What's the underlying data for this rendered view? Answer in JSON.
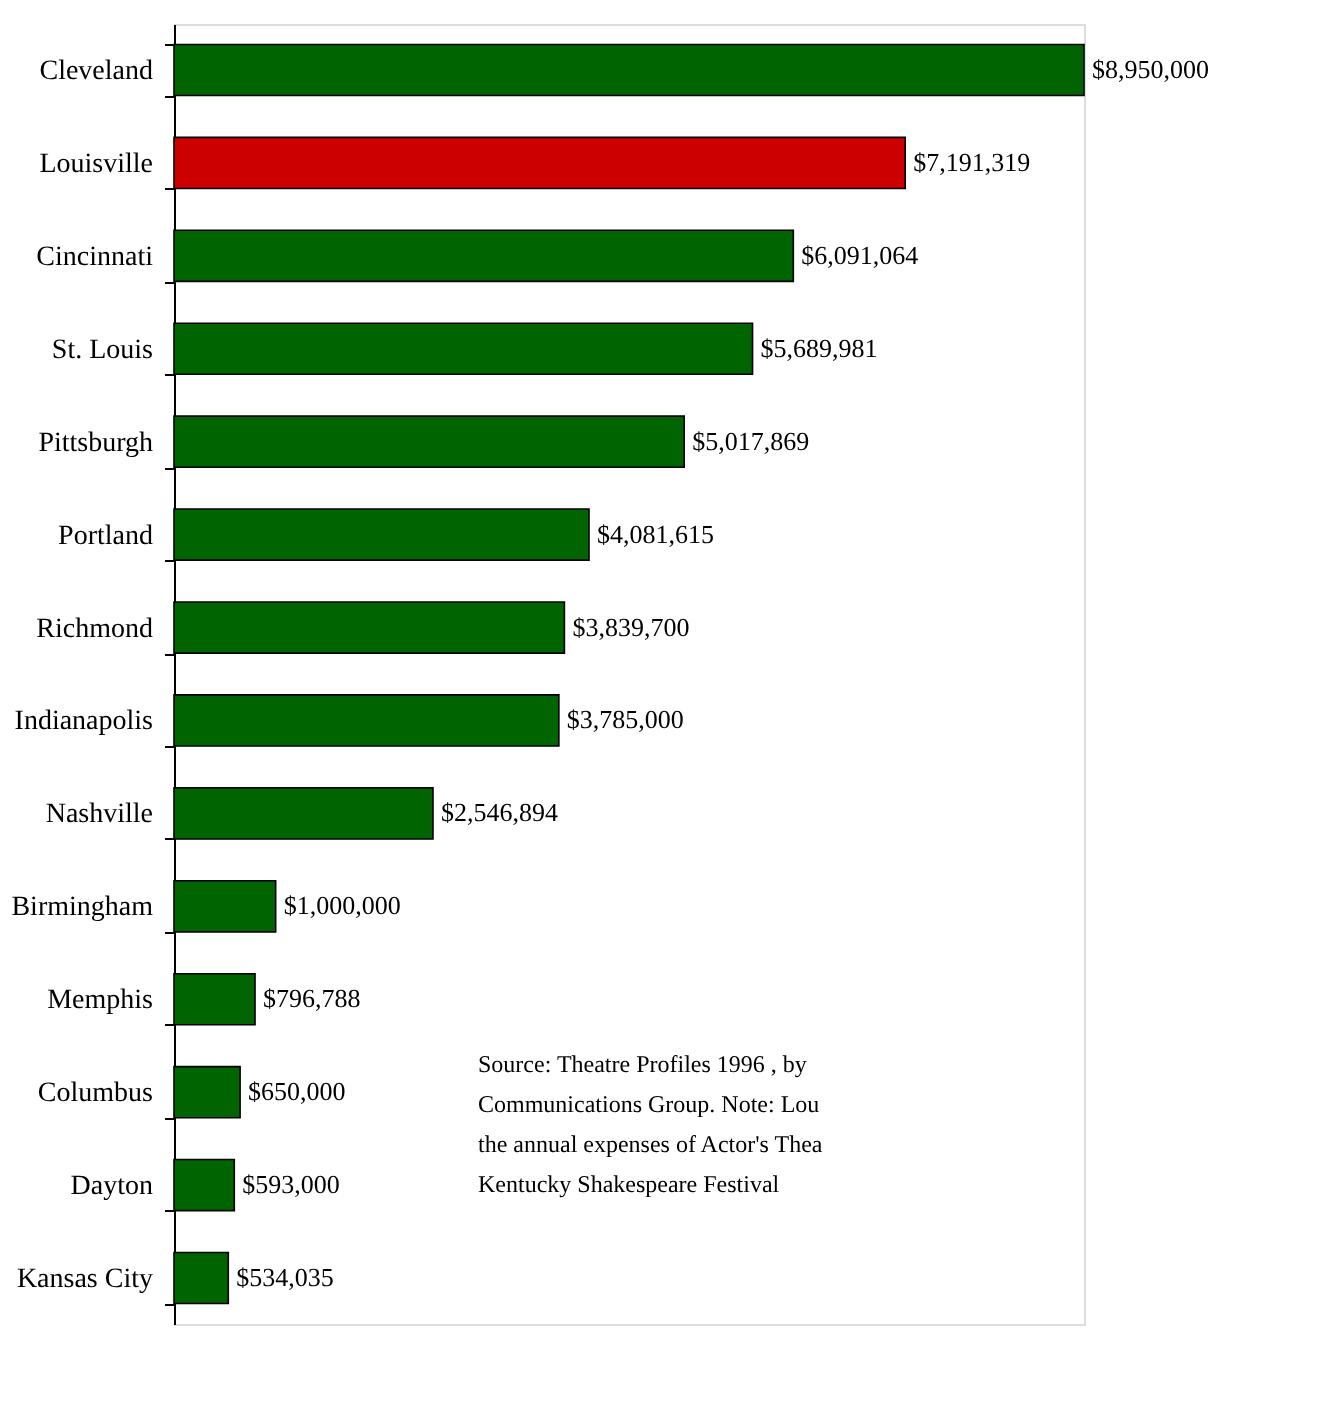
{
  "chart_data": {
    "type": "bar",
    "orientation": "horizontal",
    "categories": [
      "Cleveland",
      "Louisville",
      "Cincinnati",
      "St. Louis",
      "Pittsburgh",
      "Portland",
      "Richmond",
      "Indianapolis",
      "Nashville",
      "Birmingham",
      "Memphis",
      "Columbus",
      "Dayton",
      "Kansas City"
    ],
    "values": [
      8950000,
      7191319,
      6091064,
      5689981,
      5017869,
      4081615,
      3839700,
      3785000,
      2546894,
      1000000,
      796788,
      650000,
      593000,
      534035
    ],
    "value_labels": [
      "$8,950,000",
      "$7,191,319",
      "$6,091,064",
      "$5,689,981",
      "$5,017,869",
      "$4,081,615",
      "$3,839,700",
      "$3,785,000",
      "$2,546,894",
      "$1,000,000",
      "$796,788",
      "$650,000",
      "$593,000",
      "$534,035"
    ],
    "colors": [
      "#006400",
      "#cc0000",
      "#006400",
      "#006400",
      "#006400",
      "#006400",
      "#006400",
      "#006400",
      "#006400",
      "#006400",
      "#006400",
      "#006400",
      "#006400",
      "#006400"
    ],
    "annotations": [
      "Source: Theatre Profiles 1996 , by\nCommunications Group. Note: Lou\nthe annual expenses of Actor's Thea\nKentucky Shakespeare Festival"
    ],
    "grid": false
  }
}
